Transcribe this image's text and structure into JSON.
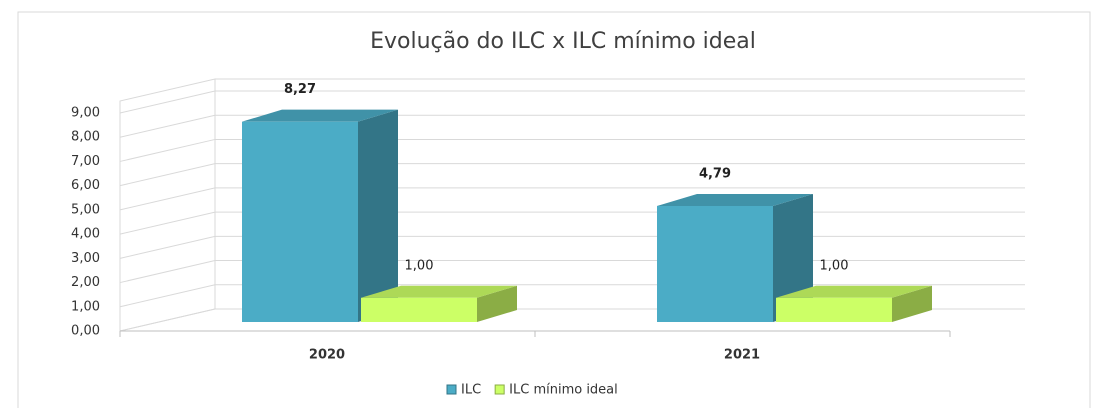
{
  "chart_data": {
    "type": "bar3d",
    "title": "Evolução do ILC x ILC mínimo ideal",
    "categories": [
      "2020",
      "2021"
    ],
    "series": [
      {
        "name": "ILC",
        "color": "#4bacc6",
        "values": [
          8.27,
          4.79
        ],
        "value_labels": [
          "8,27",
          "4,79"
        ]
      },
      {
        "name": "ILC mínimo ideal",
        "color": "#ccff66",
        "values": [
          1,
          1
        ],
        "value_labels": [
          "1,00",
          "1,00"
        ]
      }
    ],
    "ylim": [
      0,
      9
    ],
    "yticks": [
      {
        "value": 0,
        "label": "0,00"
      },
      {
        "value": 1,
        "label": "1,00"
      },
      {
        "value": 2,
        "label": "2,00"
      },
      {
        "value": 3,
        "label": "3,00"
      },
      {
        "value": 4,
        "label": "4,00"
      },
      {
        "value": 5,
        "label": "5,00"
      },
      {
        "value": 6,
        "label": "6,00"
      },
      {
        "value": 7,
        "label": "7,00"
      },
      {
        "value": 8,
        "label": "8,00"
      },
      {
        "value": 9,
        "label": "9,00"
      }
    ],
    "grid": true,
    "legend": "bottom"
  }
}
